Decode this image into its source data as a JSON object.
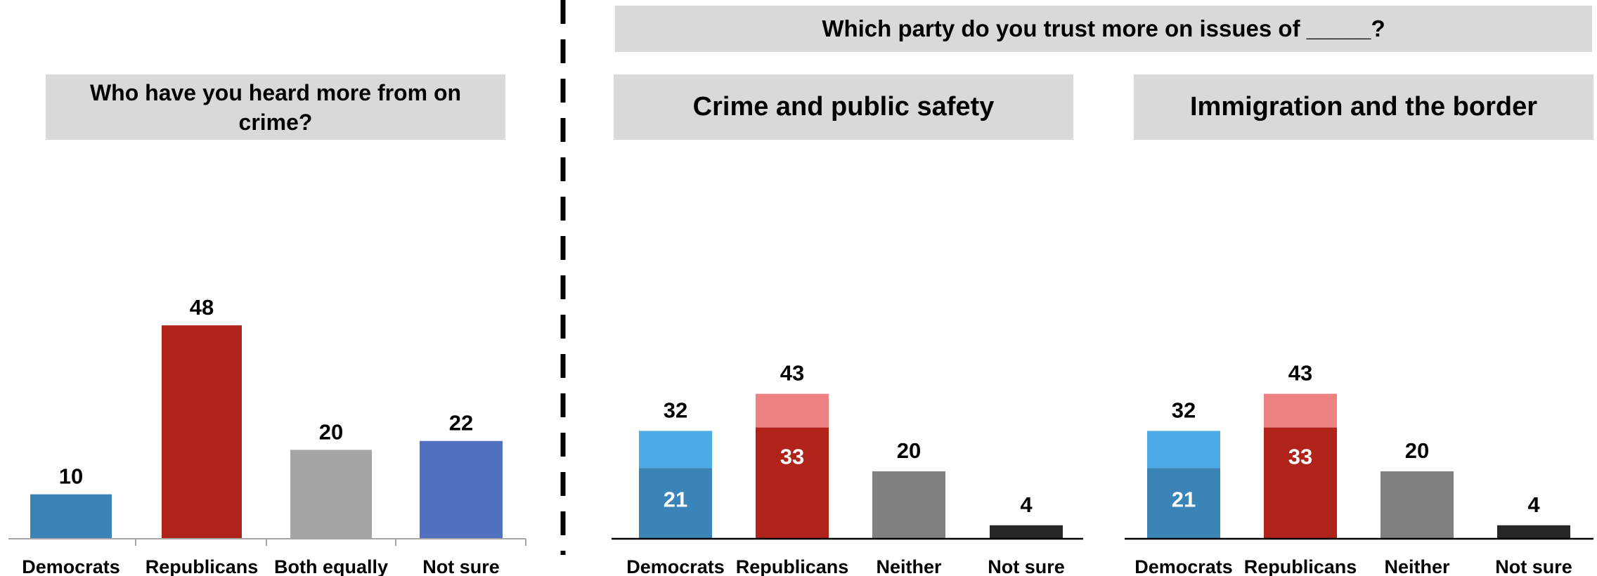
{
  "chart_data": [
    {
      "type": "bar",
      "title": "Who have you heard more from on crime?",
      "categories": [
        "Democrats",
        "Republicans",
        "Both equally",
        "Not sure"
      ],
      "values": [
        10,
        48,
        20,
        22
      ],
      "colors": [
        "#3a84b8",
        "#b0231b",
        "#a5a5a5",
        "#4f71bf"
      ],
      "grid": false
    },
    {
      "type": "bar",
      "stacked": true,
      "super_title": "Which party do you trust more on issues of _____?",
      "title": "Crime and public safety",
      "categories": [
        "Democrats",
        "Republicans",
        "Neither",
        "Not sure"
      ],
      "totals": [
        32,
        43,
        20,
        4
      ],
      "inner_values": [
        21,
        33,
        null,
        null
      ],
      "colors_inner": [
        "#3a84b8",
        "#b0231b",
        "#808080",
        "#262626"
      ],
      "colors_outer": [
        "#4dace8",
        "#ee8282",
        null,
        null
      ],
      "grid": false
    },
    {
      "type": "bar",
      "stacked": true,
      "title": "Immigration and the border",
      "categories": [
        "Democrats",
        "Republicans",
        "Neither",
        "Not sure"
      ],
      "totals": [
        32,
        43,
        20,
        4
      ],
      "inner_values": [
        21,
        33,
        null,
        null
      ],
      "colors_inner": [
        "#3a84b8",
        "#b0231b",
        "#808080",
        "#262626"
      ],
      "colors_outer": [
        "#4dace8",
        "#ee8282",
        null,
        null
      ],
      "grid": false
    }
  ]
}
